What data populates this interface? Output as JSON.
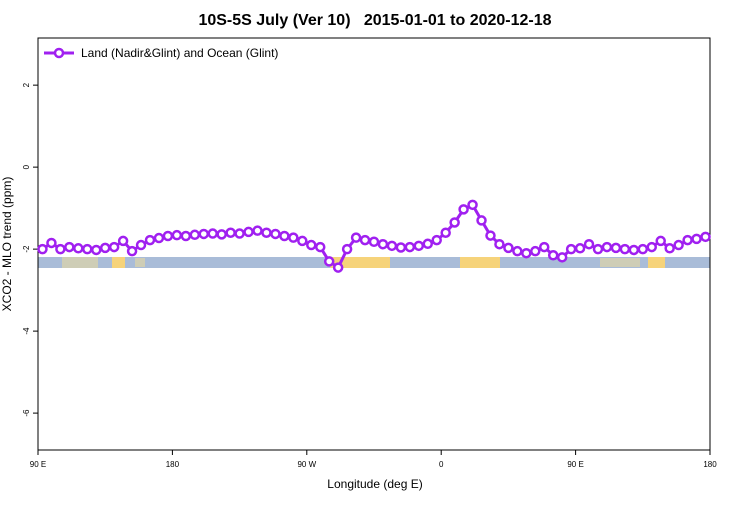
{
  "chart_data": {
    "type": "line",
    "title": "10S-5S July (Ver 10)   2015-01-01 to 2020-12-18",
    "xlabel": "Longitude (deg E)",
    "ylabel": "XCO2 - MLO trend (ppm)",
    "x": [
      93,
      99,
      105,
      111,
      117,
      123,
      129,
      135,
      141,
      147,
      153,
      159,
      165,
      171,
      177,
      183,
      189,
      195,
      201,
      207,
      213,
      219,
      225,
      231,
      237,
      243,
      249,
      255,
      261,
      267,
      273,
      279,
      285,
      291,
      297,
      303,
      309,
      315,
      321,
      327,
      333,
      339,
      345,
      351,
      357,
      363,
      369,
      375,
      381,
      387,
      393,
      399,
      405,
      411,
      417,
      423,
      429,
      435,
      441,
      447,
      453,
      459,
      465,
      471,
      477,
      483,
      489,
      495,
      501,
      507,
      513,
      519,
      525,
      531,
      537
    ],
    "series": [
      {
        "name": "Land (Nadir&Glint) and Ocean (Glint)",
        "color": "#a020f0",
        "values": [
          -2.0,
          -1.85,
          -2.0,
          -1.95,
          -1.98,
          -2.0,
          -2.02,
          -1.97,
          -1.95,
          -1.8,
          -2.05,
          -1.9,
          -1.78,
          -1.73,
          -1.68,
          -1.66,
          -1.68,
          -1.65,
          -1.63,
          -1.62,
          -1.64,
          -1.6,
          -1.62,
          -1.58,
          -1.55,
          -1.6,
          -1.63,
          -1.68,
          -1.72,
          -1.8,
          -1.9,
          -1.95,
          -2.3,
          -2.45,
          -2.0,
          -1.72,
          -1.78,
          -1.82,
          -1.88,
          -1.92,
          -1.96,
          -1.95,
          -1.92,
          -1.87,
          -1.78,
          -1.6,
          -1.35,
          -1.03,
          -0.92,
          -1.3,
          -1.67,
          -1.88,
          -1.97,
          -2.05,
          -2.1,
          -2.05,
          -1.95,
          -2.15,
          -2.2,
          -2.0,
          -1.98,
          -1.88,
          -2.0,
          -1.95,
          -1.97,
          -2.0,
          -2.02,
          -2.0,
          -1.95,
          -1.8,
          -1.98,
          -1.9,
          -1.78,
          -1.75,
          -1.7
        ]
      }
    ],
    "xlim": [
      90,
      540
    ],
    "xticks": [
      {
        "value": 90,
        "label": "90 E"
      },
      180,
      {
        "value": 270,
        "label": "90 W"
      },
      {
        "value": 360,
        "label": "0"
      },
      {
        "value": 450,
        "label": "90 E"
      },
      {
        "value": 540,
        "label": "180"
      }
    ],
    "ylim": [
      -6.9,
      3.15
    ],
    "yticks": [
      -6,
      -4,
      -2,
      0,
      2
    ],
    "legend": "top-left"
  }
}
